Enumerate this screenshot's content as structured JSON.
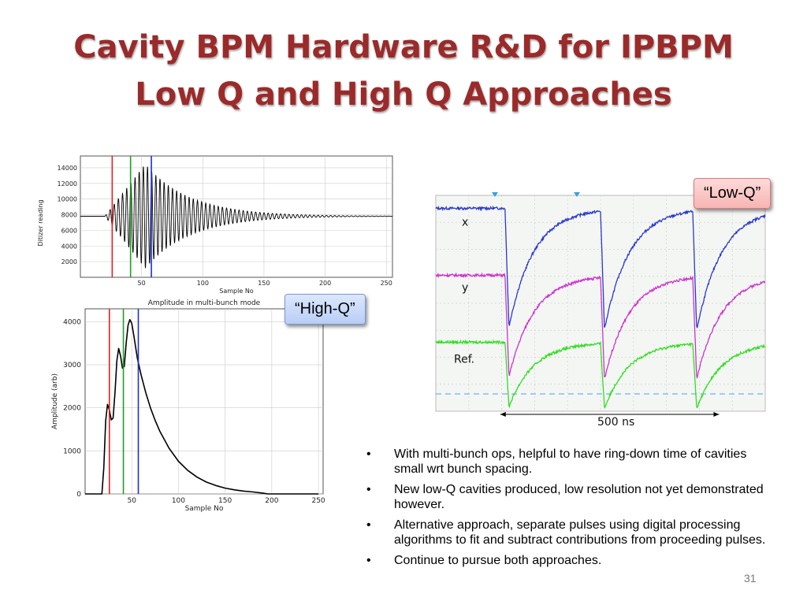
{
  "title": {
    "line1": "Cavity BPM Hardware R&D for IPBPM",
    "line2": "Low Q and High Q Approaches"
  },
  "callouts": {
    "low_q": "“Low-Q”",
    "high_q": "“High-Q”"
  },
  "bullets": [
    "With multi-bunch ops, helpful to have ring-down time of cavities small wrt bunch spacing.",
    "New low-Q cavities produced, low resolution not yet demonstrated however.",
    "Alternative approach, separate pulses using digital processing algorithms to fit and subtract contributions from proceeding pulses.",
    "Continue to pursue both approaches."
  ],
  "page_number": "31",
  "chart_data": [
    {
      "type": "line",
      "title": "",
      "xlabel": "Sample No",
      "ylabel": "Ditizer reading",
      "xlim": [
        0,
        255
      ],
      "ylim": [
        0,
        15500
      ],
      "x_ticks": [
        50,
        100,
        150,
        200,
        250
      ],
      "y_ticks": [
        2000,
        4000,
        6000,
        8000,
        10000,
        12000,
        14000
      ],
      "grid": true,
      "baseline": 7800,
      "onset_sample": 20,
      "peak_sample": 53,
      "markers": [
        {
          "x": 26,
          "color": "#e02020"
        },
        {
          "x": 41,
          "color": "#20a020"
        },
        {
          "x": 58,
          "color": "#2030d0"
        }
      ],
      "series": [
        {
          "color": "#000000"
        }
      ]
    },
    {
      "type": "line",
      "title": "Amplitude in multi-bunch mode",
      "xlabel": "Sample No",
      "ylabel": "Amplitude (arb)",
      "xlim": [
        0,
        255
      ],
      "ylim": [
        0,
        4300
      ],
      "x_ticks": [
        50,
        100,
        150,
        200,
        250
      ],
      "y_ticks": [
        0,
        1000,
        2000,
        3000,
        4000
      ],
      "grid": true,
      "markers": [
        {
          "x": 26,
          "color": "#e02020"
        },
        {
          "x": 41,
          "color": "#20a020"
        },
        {
          "x": 57,
          "color": "#2030d0"
        }
      ],
      "series": [
        {
          "color": "#000000",
          "x": [
            0,
            18,
            20,
            22,
            24,
            26,
            28,
            30,
            32,
            34,
            36,
            38,
            40,
            42,
            44,
            46,
            48,
            50,
            52,
            54,
            56,
            60,
            65,
            70,
            75,
            80,
            90,
            100,
            110,
            120,
            130,
            140,
            150,
            160,
            170,
            180,
            190,
            196,
            200,
            250
          ],
          "y": [
            0,
            0,
            600,
            1700,
            2080,
            1950,
            1720,
            1760,
            2350,
            3100,
            3380,
            3200,
            2920,
            2960,
            3500,
            3920,
            4050,
            3960,
            3700,
            3420,
            3150,
            2760,
            2350,
            2000,
            1710,
            1460,
            1060,
            760,
            545,
            390,
            275,
            195,
            135,
            95,
            65,
            45,
            20,
            0,
            0,
            0
          ]
        }
      ]
    },
    {
      "type": "line",
      "title": "",
      "xlabel": "",
      "ylabel": "",
      "grid": true,
      "annotation": "500 ns",
      "reference_line": "dashed",
      "series": [
        {
          "name": "x",
          "color": "#2b39c8",
          "baseline": 0.94,
          "trough": 0.39
        },
        {
          "name": "y",
          "color": "#cc33cc",
          "baseline": 0.63,
          "trough": 0.16
        },
        {
          "name": "Ref.",
          "color": "#33dd22",
          "baseline": 0.32,
          "trough": 0.02
        }
      ],
      "pulse_times": [
        0.21,
        0.5,
        0.78
      ]
    }
  ]
}
